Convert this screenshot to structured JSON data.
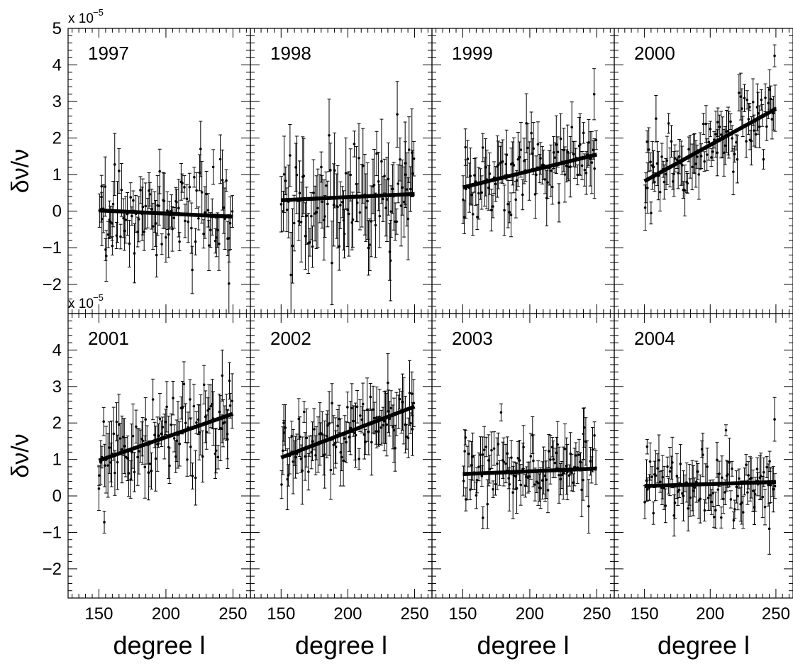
{
  "chart_data": {
    "type": "scatter",
    "layout_grid": {
      "rows": 2,
      "cols": 4
    },
    "xlabel": "degree l",
    "ylabel": "δν/ν",
    "y_multiplier": "x 10",
    "y_multiplier_exp": "−5",
    "xlim": [
      127,
      263
    ],
    "ylim": [
      -2.8,
      5.0
    ],
    "x_ticks": [
      150,
      200,
      250
    ],
    "x_tick_labels": [
      "150",
      "200",
      "250"
    ],
    "y_ticks": [
      5,
      4,
      3,
      2,
      1,
      0,
      -1,
      -2
    ],
    "y_tick_labels": [
      "5",
      "4",
      "3",
      "2",
      "1",
      "0",
      "−1",
      "−2"
    ],
    "grid": false,
    "panels": [
      {
        "year": "1997",
        "fit": [
          [
            150,
            0.02
          ],
          [
            250,
            -0.15
          ]
        ],
        "n_points": 95,
        "scatter_sd": 0.55,
        "err_mean": 0.55,
        "outliers": [
          [
            152,
            0.68,
            0.3
          ],
          [
            155,
            -1.05,
            0.3
          ],
          [
            160,
            -0.95,
            0.25
          ],
          [
            193,
            -1.2,
            0.6
          ],
          [
            247,
            -1.98,
            0.9
          ]
        ]
      },
      {
        "year": "1998",
        "fit": [
          [
            150,
            0.3
          ],
          [
            250,
            0.47
          ]
        ],
        "n_points": 95,
        "scatter_sd": 0.7,
        "err_mean": 0.75,
        "outliers": [
          [
            237,
            2.65,
            0.9
          ],
          [
            232,
            -1.35,
            1.1
          ],
          [
            243,
            1.0,
            0.9
          ],
          [
            248,
            1.6,
            1.2
          ]
        ]
      },
      {
        "year": "1999",
        "fit": [
          [
            150,
            0.65
          ],
          [
            250,
            1.55
          ]
        ],
        "n_points": 95,
        "scatter_sd": 0.55,
        "err_mean": 0.55,
        "outliers": [
          [
            152,
            1.75,
            0.5
          ],
          [
            186,
            -0.1,
            0.6
          ],
          [
            248,
            3.2,
            0.7
          ]
        ]
      },
      {
        "year": "2000",
        "fit": [
          [
            150,
            0.82
          ],
          [
            250,
            2.8
          ]
        ],
        "n_points": 95,
        "scatter_sd": 0.45,
        "err_mean": 0.45,
        "outliers": [
          [
            152,
            1.9,
            0.3
          ],
          [
            155,
            -0.05,
            0.3
          ],
          [
            249,
            4.25,
            0.3
          ],
          [
            230,
            2.85,
            0.1
          ]
        ]
      },
      {
        "year": "2001",
        "fit": [
          [
            150,
            0.97
          ],
          [
            250,
            2.25
          ]
        ],
        "n_points": 95,
        "scatter_sd": 0.55,
        "err_mean": 0.6,
        "outliers": [
          [
            150,
            0.2,
            0.6
          ],
          [
            154,
            -0.72,
            0.3
          ],
          [
            246,
            1.55,
            0.8
          ],
          [
            242,
            3.3,
            0.7
          ]
        ]
      },
      {
        "year": "2002",
        "fit": [
          [
            150,
            1.05
          ],
          [
            250,
            2.45
          ]
        ],
        "n_points": 95,
        "scatter_sd": 0.5,
        "err_mean": 0.6,
        "outliers": [
          [
            152,
            2.0,
            0.5
          ],
          [
            248,
            2.8,
            0.6
          ],
          [
            230,
            3.1,
            0.8
          ]
        ]
      },
      {
        "year": "2003",
        "fit": [
          [
            150,
            0.6
          ],
          [
            250,
            0.75
          ]
        ],
        "n_points": 95,
        "scatter_sd": 0.45,
        "err_mean": 0.5,
        "outliers": [
          [
            152,
            1.6,
            0.2
          ],
          [
            165,
            -0.6,
            0.3
          ],
          [
            240,
            1.7,
            0.7
          ]
        ]
      },
      {
        "year": "2004",
        "fit": [
          [
            150,
            0.27
          ],
          [
            250,
            0.38
          ]
        ],
        "n_points": 95,
        "scatter_sd": 0.4,
        "err_mean": 0.45,
        "outliers": [
          [
            152,
            1.35,
            0.2
          ],
          [
            212,
            1.8,
            0.15
          ],
          [
            249,
            2.1,
            0.6
          ],
          [
            245,
            -0.9,
            0.7
          ]
        ]
      }
    ]
  }
}
